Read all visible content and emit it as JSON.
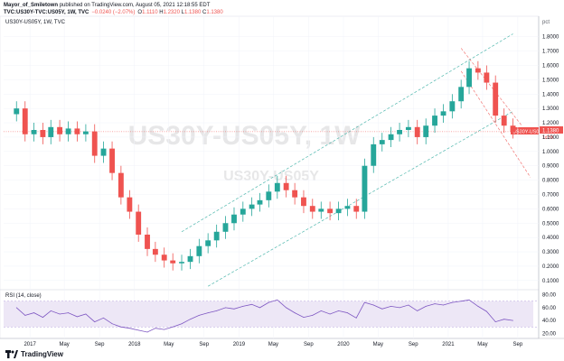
{
  "header": {
    "author": "Mayor_of_Smiletown",
    "published_text": "published on TradingView.com, August 05, 2021 12:18:55 EDT",
    "symbol": "TVC:US30Y-TVC:US05Y, 1W, TVC",
    "change": "−0.0240 (−2.07%)",
    "ohlc": [
      {
        "k": "O",
        "v": "1.1110"
      },
      {
        "k": "H",
        "v": "1.2320"
      },
      {
        "k": "L",
        "v": "1.1380"
      },
      {
        "k": "C",
        "v": "1.1380"
      }
    ]
  },
  "series_label": "US30Y-US05Y, 1W, TVC",
  "watermark": {
    "large": "US30Y-US05Y, 1W",
    "small": "US30Y-US05Y"
  },
  "price_tag": {
    "value": "1.1380",
    "sub": "1d 5h"
  },
  "rsi_label": "RSI (14, close)",
  "footer": {
    "logo_text": "TradingView"
  },
  "colors": {
    "up": "#26a69a",
    "down": "#ef5350",
    "rsi": "#7e57c2",
    "channel_up": "#26a69a",
    "channel_down": "#ef5350",
    "rsi_band": "#ede7f6"
  },
  "chart_data": [
    {
      "type": "candlestick",
      "title": "US30Y-US05Y, 1W, TVC",
      "x_ticks": [
        "2017",
        "May",
        "Sep",
        "2018",
        "May",
        "Sep",
        "2019",
        "May",
        "Sep",
        "2020",
        "May",
        "Sep",
        "2021",
        "May",
        "Sep"
      ],
      "y_ticks": [
        "0.1000",
        "0.2000",
        "0.3000",
        "0.4000",
        "0.5000",
        "0.6000",
        "0.7000",
        "0.8000",
        "0.9000",
        "1.0000",
        "1.1000",
        "1.2000",
        "1.3000",
        "1.4000",
        "1.5000",
        "1.6000",
        "1.7000",
        "1.8000"
      ],
      "y_unit": "pct",
      "ylim": [
        0.08,
        1.88
      ],
      "last_value": 1.138,
      "x": [
        "2016-11",
        "2016-12",
        "2017-01",
        "2017-02",
        "2017-03",
        "2017-04",
        "2017-05",
        "2017-06",
        "2017-07",
        "2017-08",
        "2017-09",
        "2017-10",
        "2017-11",
        "2017-12",
        "2018-01",
        "2018-02",
        "2018-03",
        "2018-04",
        "2018-05",
        "2018-06",
        "2018-07",
        "2018-08",
        "2018-09",
        "2018-10",
        "2018-11",
        "2018-12",
        "2019-01",
        "2019-02",
        "2019-03",
        "2019-04",
        "2019-05",
        "2019-06",
        "2019-07",
        "2019-08",
        "2019-09",
        "2019-10",
        "2019-11",
        "2019-12",
        "2020-01",
        "2020-02",
        "2020-03",
        "2020-04",
        "2020-05",
        "2020-06",
        "2020-07",
        "2020-08",
        "2020-09",
        "2020-10",
        "2020-11",
        "2020-12",
        "2021-01",
        "2021-02",
        "2021-03",
        "2021-04",
        "2021-05",
        "2021-06",
        "2021-07",
        "2021-08"
      ],
      "close": [
        1.3,
        1.12,
        1.15,
        1.1,
        1.17,
        1.12,
        1.16,
        1.12,
        1.14,
        0.97,
        1.02,
        0.85,
        0.68,
        0.58,
        0.42,
        0.32,
        0.28,
        0.24,
        0.22,
        0.23,
        0.27,
        0.34,
        0.38,
        0.44,
        0.5,
        0.56,
        0.6,
        0.63,
        0.66,
        0.72,
        0.78,
        0.73,
        0.68,
        0.62,
        0.58,
        0.6,
        0.57,
        0.6,
        0.62,
        0.58,
        0.9,
        1.05,
        1.08,
        1.12,
        1.15,
        1.17,
        1.1,
        1.18,
        1.25,
        1.28,
        1.35,
        1.45,
        1.58,
        1.55,
        1.48,
        1.25,
        1.18,
        1.14
      ],
      "trendlines": [
        {
          "name": "rising channel upper",
          "from": [
            "2018-06",
            0.44
          ],
          "to": [
            "2021-08",
            1.82
          ]
        },
        {
          "name": "rising channel lower",
          "from": [
            "2018-09",
            0.06
          ],
          "to": [
            "2021-08",
            1.28
          ]
        },
        {
          "name": "falling channel upper",
          "from": [
            "2021-02",
            1.72
          ],
          "to": [
            "2021-09",
            1.18
          ]
        },
        {
          "name": "falling channel lower",
          "from": [
            "2021-02",
            1.56
          ],
          "to": [
            "2021-10",
            0.82
          ]
        }
      ]
    },
    {
      "type": "line",
      "title": "RSI (14, close)",
      "y_ticks": [
        "20.00",
        "40.00",
        "60.00",
        "80.00"
      ],
      "ylim": [
        15,
        85
      ],
      "bands": [
        30,
        70
      ],
      "x": [
        "2016-11",
        "2016-12",
        "2017-01",
        "2017-02",
        "2017-03",
        "2017-04",
        "2017-05",
        "2017-06",
        "2017-07",
        "2017-08",
        "2017-09",
        "2017-10",
        "2017-11",
        "2017-12",
        "2018-01",
        "2018-02",
        "2018-03",
        "2018-04",
        "2018-05",
        "2018-06",
        "2018-07",
        "2018-08",
        "2018-09",
        "2018-10",
        "2018-11",
        "2018-12",
        "2019-01",
        "2019-02",
        "2019-03",
        "2019-04",
        "2019-05",
        "2019-06",
        "2019-07",
        "2019-08",
        "2019-09",
        "2019-10",
        "2019-11",
        "2019-12",
        "2020-01",
        "2020-02",
        "2020-03",
        "2020-04",
        "2020-05",
        "2020-06",
        "2020-07",
        "2020-08",
        "2020-09",
        "2020-10",
        "2020-11",
        "2020-12",
        "2021-01",
        "2021-02",
        "2021-03",
        "2021-04",
        "2021-05",
        "2021-06",
        "2021-07",
        "2021-08"
      ],
      "values": [
        60,
        48,
        52,
        45,
        55,
        50,
        52,
        46,
        50,
        38,
        44,
        35,
        30,
        28,
        25,
        22,
        28,
        26,
        30,
        35,
        42,
        48,
        52,
        55,
        60,
        58,
        62,
        65,
        60,
        68,
        72,
        60,
        52,
        45,
        48,
        55,
        50,
        55,
        52,
        44,
        68,
        64,
        58,
        62,
        60,
        64,
        55,
        62,
        66,
        64,
        68,
        70,
        72,
        62,
        54,
        38,
        42,
        40
      ]
    }
  ]
}
